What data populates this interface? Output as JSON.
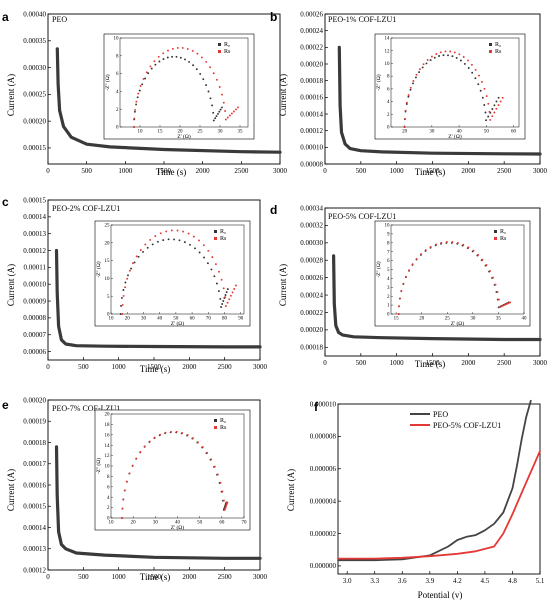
{
  "chart_data": [
    {
      "type": "line",
      "panel": "a",
      "title": "PEO",
      "xlabel": "Time (s)",
      "ylabel": "Current (A)",
      "xlim": [
        0,
        3000
      ],
      "ylim": [
        0.00012,
        0.0004
      ],
      "xticks": [
        "0",
        "500",
        "1000",
        "1500",
        "2000",
        "2500",
        "3000"
      ],
      "yticks": [
        "0.00015",
        "0.00020",
        "0.00025",
        "0.00030",
        "0.00035",
        "0.00040"
      ],
      "series": [
        {
          "x": [
            120,
            130,
            150,
            200,
            300,
            500,
            800,
            1500,
            2500,
            3000
          ],
          "values": [
            0.000335,
            0.00027,
            0.00022,
            0.00019,
            0.00017,
            0.000157,
            0.000152,
            0.000147,
            0.000143,
            0.000142
          ]
        }
      ],
      "inset": {
        "xlabel": "Z' (Ω)",
        "ylabel": "-Z'' (Ω)",
        "xlim": [
          5,
          37
        ],
        "ylim": [
          0,
          10
        ],
        "xticks": [
          "10",
          "15",
          "20",
          "25",
          "30",
          "35"
        ],
        "yticks": [
          "0",
          "2",
          "4",
          "6",
          "8",
          "10"
        ],
        "legend": [
          "R₀",
          "Rs"
        ],
        "series": [
          {
            "name": "R₀",
            "color": "#333333",
            "center": 18.5,
            "radius": 10.0,
            "peak": 7.9,
            "tail_end": [
              30.5,
              2.2
            ]
          },
          {
            "name": "Rs",
            "color": "#e53935",
            "center": 20.0,
            "radius": 11.5,
            "peak": 8.9,
            "tail_end": [
              34.5,
              2.2
            ]
          }
        ]
      }
    },
    {
      "type": "line",
      "panel": "b",
      "title": "PEO-1% COF-LZU1",
      "xlabel": "Time (s)",
      "ylabel": "Current (A)",
      "xlim": [
        0,
        3000
      ],
      "ylim": [
        8e-05,
        0.00026
      ],
      "xticks": [
        "0",
        "500",
        "1000",
        "1500",
        "2000",
        "2500",
        "3000"
      ],
      "yticks": [
        "0.00008",
        "0.00010",
        "0.00012",
        "0.00014",
        "0.00016",
        "0.00018",
        "0.00020",
        "0.00022",
        "0.00024",
        "0.00026"
      ],
      "series": [
        {
          "x": [
            200,
            210,
            230,
            280,
            350,
            500,
            800,
            1500,
            2500,
            3000
          ],
          "values": [
            0.00022,
            0.00015,
            0.000118,
            0.000104,
            9.85e-05,
            9.6e-05,
            9.45e-05,
            9.3e-05,
            9.22e-05,
            9.2e-05
          ]
        }
      ],
      "inset": {
        "xlabel": "Z' (Ω)",
        "ylabel": "-Z'' (Ω)",
        "xlim": [
          15,
          62
        ],
        "ylim": [
          0,
          14
        ],
        "xticks": [
          "20",
          "30",
          "40",
          "50",
          "60"
        ],
        "yticks": [
          "0",
          "2",
          "4",
          "6",
          "8",
          "10",
          "12",
          "14"
        ],
        "legend": [
          "R₀",
          "Rs"
        ],
        "series": [
          {
            "name": "R₀",
            "color": "#333333",
            "center": 35.0,
            "radius": 15.0,
            "peak": 11.3,
            "tail_end": [
              54.5,
              4.6
            ]
          },
          {
            "name": "Rs",
            "color": "#e53935",
            "center": 35.75,
            "radius": 15.75,
            "peak": 11.9,
            "tail_end": [
              56.0,
              4.6
            ]
          }
        ]
      }
    },
    {
      "type": "line",
      "panel": "c",
      "title": "PEO-2% COF-LZU1",
      "xlabel": "Time (s)",
      "ylabel": "Current (A)",
      "xlim": [
        0,
        3000
      ],
      "ylim": [
        5.5e-05,
        0.00015
      ],
      "xticks": [
        "0",
        "500",
        "1000",
        "1500",
        "2000",
        "2500",
        "3000"
      ],
      "yticks": [
        "0.00006",
        "0.00007",
        "0.00008",
        "0.00009",
        "0.00010",
        "0.00011",
        "0.00012",
        "0.00013",
        "0.00014",
        "0.00015"
      ],
      "series": [
        {
          "x": [
            120,
            130,
            150,
            190,
            250,
            400,
            800,
            1500,
            2500,
            3000
          ],
          "values": [
            0.00012,
            9.5e-05,
            7.5e-05,
            6.7e-05,
            6.45e-05,
            6.35e-05,
            6.32e-05,
            6.3e-05,
            6.28e-05,
            6.28e-05
          ]
        }
      ],
      "inset": {
        "xlabel": "Z' (Ω)",
        "ylabel": "-Z'' (Ω)",
        "xlim": [
          10,
          92
        ],
        "ylim": [
          0,
          25
        ],
        "xticks": [
          "10",
          "20",
          "30",
          "40",
          "50",
          "60",
          "70",
          "80",
          "90"
        ],
        "yticks": [
          "0",
          "5",
          "10",
          "15",
          "20",
          "25"
        ],
        "legend": [
          "R₀",
          "Rs"
        ],
        "series": [
          {
            "name": "R₀",
            "color": "#333333",
            "center": 47.0,
            "radius": 31.0,
            "peak": 21.0,
            "tail_end": [
              82.0,
              7.0
            ]
          },
          {
            "name": "Rs",
            "color": "#e53935",
            "center": 49.0,
            "radius": 32.0,
            "peak": 23.5,
            "tail_end": [
              87.0,
              8.0
            ]
          }
        ]
      }
    },
    {
      "type": "line",
      "panel": "d",
      "title": "PEO-5% COF-LZU1",
      "xlabel": "Time (s)",
      "ylabel": "Current (A)",
      "xlim": [
        0,
        3000
      ],
      "ylim": [
        0.00017,
        0.00034
      ],
      "xticks": [
        "0",
        "500",
        "1000",
        "1500",
        "2000",
        "2500",
        "3000"
      ],
      "yticks": [
        "0.00018",
        "0.00020",
        "0.00022",
        "0.00024",
        "0.00026",
        "0.00028",
        "0.00030",
        "0.00032",
        "0.00034"
      ],
      "series": [
        {
          "x": [
            120,
            130,
            150,
            190,
            250,
            400,
            800,
            1500,
            2500,
            3000
          ],
          "values": [
            0.000285,
            0.00023,
            0.000205,
            0.000197,
            0.000194,
            0.000192,
            0.000191,
            0.00019,
            0.000189,
            0.000189
          ]
        }
      ],
      "inset": {
        "xlabel": "Z' (Ω)",
        "ylabel": "-Z'' (Ω)",
        "xlim": [
          14,
          40
        ],
        "ylim": [
          0,
          10
        ],
        "xticks": [
          "15",
          "20",
          "25",
          "30",
          "35",
          "40"
        ],
        "yticks": [
          "0",
          "1",
          "2",
          "3",
          "4",
          "5",
          "6",
          "7",
          "8",
          "9",
          "10"
        ],
        "legend": [
          "R₀",
          "Rs"
        ],
        "series": [
          {
            "name": "R₀",
            "color": "#333333",
            "center": 25.3,
            "radius": 9.8,
            "peak": 8.0,
            "tail_end": [
              37.0,
              1.3
            ]
          },
          {
            "name": "Rs",
            "color": "#e53935",
            "center": 25.4,
            "radius": 9.9,
            "peak": 8.1,
            "tail_end": [
              37.3,
              1.3
            ]
          }
        ]
      }
    },
    {
      "type": "line",
      "panel": "e",
      "title": "PEO-7% COF-LZU1",
      "xlabel": "Time (s)",
      "ylabel": "Current (A)",
      "xlim": [
        0,
        3000
      ],
      "ylim": [
        0.00012,
        0.0002
      ],
      "xticks": [
        "0",
        "500",
        "1000",
        "1500",
        "2000",
        "2500",
        "3000"
      ],
      "yticks": [
        "0.00012",
        "0.00013",
        "0.00014",
        "0.00015",
        "0.00016",
        "0.00017",
        "0.00018",
        "0.00019",
        "0.00020"
      ],
      "series": [
        {
          "x": [
            120,
            130,
            150,
            190,
            250,
            400,
            800,
            1500,
            2500,
            3000
          ],
          "values": [
            0.000178,
            0.000155,
            0.000138,
            0.000132,
            0.00013,
            0.000128,
            0.000127,
            0.000126,
            0.0001255,
            0.0001255
          ]
        }
      ],
      "inset": {
        "xlabel": "Z' (Ω)",
        "ylabel": "-Z'' (Ω)",
        "xlim": [
          10,
          70
        ],
        "ylim": [
          0,
          20
        ],
        "xticks": [
          "10",
          "20",
          "30",
          "40",
          "50",
          "60",
          "70"
        ],
        "yticks": [
          "0",
          "2",
          "4",
          "6",
          "8",
          "10",
          "12",
          "14",
          "16",
          "18",
          "20"
        ],
        "legend": [
          "R₀",
          "Rs"
        ],
        "series": [
          {
            "name": "R₀",
            "color": "#333333",
            "center": 38.0,
            "radius": 23.0,
            "peak": 16.5,
            "tail_end": [
              62.0,
              3.0
            ]
          },
          {
            "name": "Rs",
            "color": "#e53935",
            "center": 38.2,
            "radius": 23.2,
            "peak": 16.6,
            "tail_end": [
              62.5,
              3.0
            ]
          }
        ]
      }
    },
    {
      "type": "line",
      "panel": "f",
      "title": "",
      "xlabel": "Potential (v)",
      "ylabel": "Current (A)",
      "xlim": [
        2.9,
        5.1
      ],
      "ylim": [
        -5e-07,
        1e-05
      ],
      "xticks": [
        "3.0",
        "3.3",
        "3.6",
        "3.9",
        "4.2",
        "4.5",
        "4.8",
        "5.1"
      ],
      "yticks": [
        "0.000000",
        "0.000002",
        "0.000004",
        "0.000006",
        "0.000008",
        "0.000010"
      ],
      "legend": [
        "PEO",
        "PEO-5% COF-LZU1"
      ],
      "series": [
        {
          "name": "PEO",
          "color": "#444444",
          "x": [
            2.9,
            3.3,
            3.6,
            3.9,
            4.1,
            4.2,
            4.3,
            4.4,
            4.5,
            4.6,
            4.7,
            4.8,
            4.85,
            4.9,
            4.95,
            5.0
          ],
          "values": [
            3.5e-07,
            3.5e-07,
            4e-07,
            6.5e-07,
            1.2e-06,
            1.6e-06,
            1.8e-06,
            1.9e-06,
            2.2e-06,
            2.6e-06,
            3.3e-06,
            4.8e-06,
            6.2e-06,
            7.8e-06,
            9.2e-06,
            1.02e-05
          ]
        },
        {
          "name": "PEO-5% COF-LZU1",
          "color": "#e53935",
          "x": [
            2.9,
            3.3,
            3.6,
            3.9,
            4.2,
            4.4,
            4.6,
            4.7,
            4.8,
            4.9,
            5.0,
            5.1
          ],
          "values": [
            4.5e-07,
            4.5e-07,
            5e-07,
            6e-07,
            7.5e-07,
            9e-07,
            1.2e-06,
            2e-06,
            3.2e-06,
            4.5e-06,
            5.8e-06,
            7.1e-06
          ]
        }
      ]
    }
  ]
}
